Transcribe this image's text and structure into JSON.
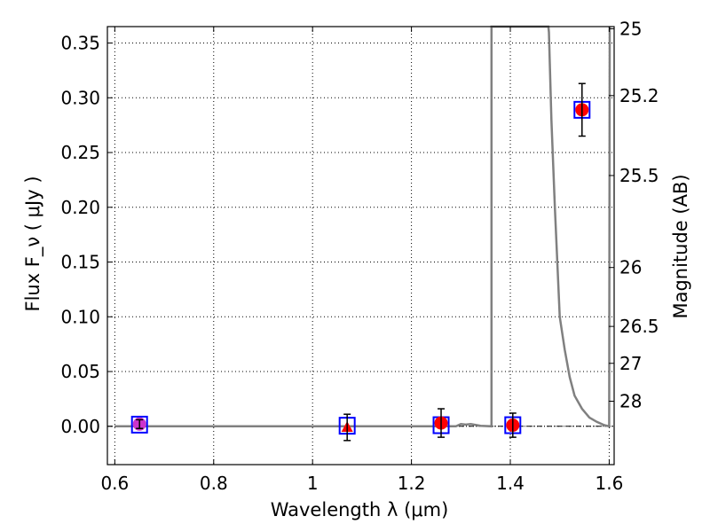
{
  "chart_data": {
    "type": "scatter",
    "title": "",
    "xlabel": "Wavelength  λ (μm)",
    "ylabel": "Flux  F_ν  ( μJy )",
    "y2label": "Magnitude (AB)",
    "xlim": [
      0.585,
      1.61
    ],
    "ylim": [
      -0.035,
      0.365
    ],
    "grid": true,
    "colors": {
      "photometry": "#ff0000",
      "model_box": "#0000ff",
      "template": "#808080",
      "first_point": "#cc33cc",
      "errorbar": "#000000"
    },
    "x_ticks": [
      {
        "value": 0.6,
        "label": "0.6"
      },
      {
        "value": 0.8,
        "label": "0.8"
      },
      {
        "value": 1.0,
        "label": "1"
      },
      {
        "value": 1.2,
        "label": "1.2"
      },
      {
        "value": 1.4,
        "label": "1.4"
      },
      {
        "value": 1.6,
        "label": "1.6"
      }
    ],
    "y_ticks": [
      {
        "value": 0.0,
        "label": "0.00"
      },
      {
        "value": 0.05,
        "label": "0.05"
      },
      {
        "value": 0.1,
        "label": "0.10"
      },
      {
        "value": 0.15,
        "label": "0.15"
      },
      {
        "value": 0.2,
        "label": "0.20"
      },
      {
        "value": 0.25,
        "label": "0.25"
      },
      {
        "value": 0.3,
        "label": "0.30"
      },
      {
        "value": 0.35,
        "label": "0.35"
      }
    ],
    "mag_ticks": [
      {
        "flux": 0.363,
        "label": "25"
      },
      {
        "flux": 0.302,
        "label": "25.2"
      },
      {
        "flux": 0.229,
        "label": "25.5"
      },
      {
        "flux": 0.145,
        "label": "26"
      },
      {
        "flux": 0.0912,
        "label": "26.5"
      },
      {
        "flux": 0.0575,
        "label": "27"
      },
      {
        "flux": 0.0229,
        "label": "28"
      }
    ],
    "points": [
      {
        "x": 0.65,
        "y": 0.002,
        "err": 0.004,
        "marker": "circle",
        "color": "#cc33cc",
        "model": 0.0015
      },
      {
        "x": 1.07,
        "y": -0.001,
        "err": 0.012,
        "marker": "triangle",
        "color": "#ff0000",
        "model": 0.0005
      },
      {
        "x": 1.26,
        "y": 0.003,
        "err": 0.013,
        "marker": "circle",
        "color": "#ff0000",
        "model": 0.001
      },
      {
        "x": 1.405,
        "y": 0.001,
        "err": 0.011,
        "marker": "circle",
        "color": "#ff0000",
        "model": 0.001
      },
      {
        "x": 1.545,
        "y": 0.289,
        "err": 0.024,
        "marker": "circle",
        "color": "#ff0000",
        "model": 0.289
      }
    ],
    "template_spectrum": [
      [
        0.6,
        0.0
      ],
      [
        1.29,
        0.0
      ],
      [
        1.3,
        0.002
      ],
      [
        1.31,
        0.0015
      ],
      [
        1.32,
        0.002
      ],
      [
        1.34,
        0.0005
      ],
      [
        1.362,
        0.0
      ],
      [
        1.362,
        0.365
      ],
      [
        1.365,
        0.365
      ],
      [
        1.477,
        0.365
      ],
      [
        1.478,
        0.36
      ],
      [
        1.483,
        0.28
      ],
      [
        1.49,
        0.2
      ],
      [
        1.5,
        0.1
      ],
      [
        1.51,
        0.07
      ],
      [
        1.52,
        0.045
      ],
      [
        1.53,
        0.028
      ],
      [
        1.545,
        0.016
      ],
      [
        1.56,
        0.008
      ],
      [
        1.575,
        0.004
      ],
      [
        1.59,
        0.001
      ],
      [
        1.6,
        0.0
      ],
      [
        1.601,
        0.365
      ]
    ]
  }
}
